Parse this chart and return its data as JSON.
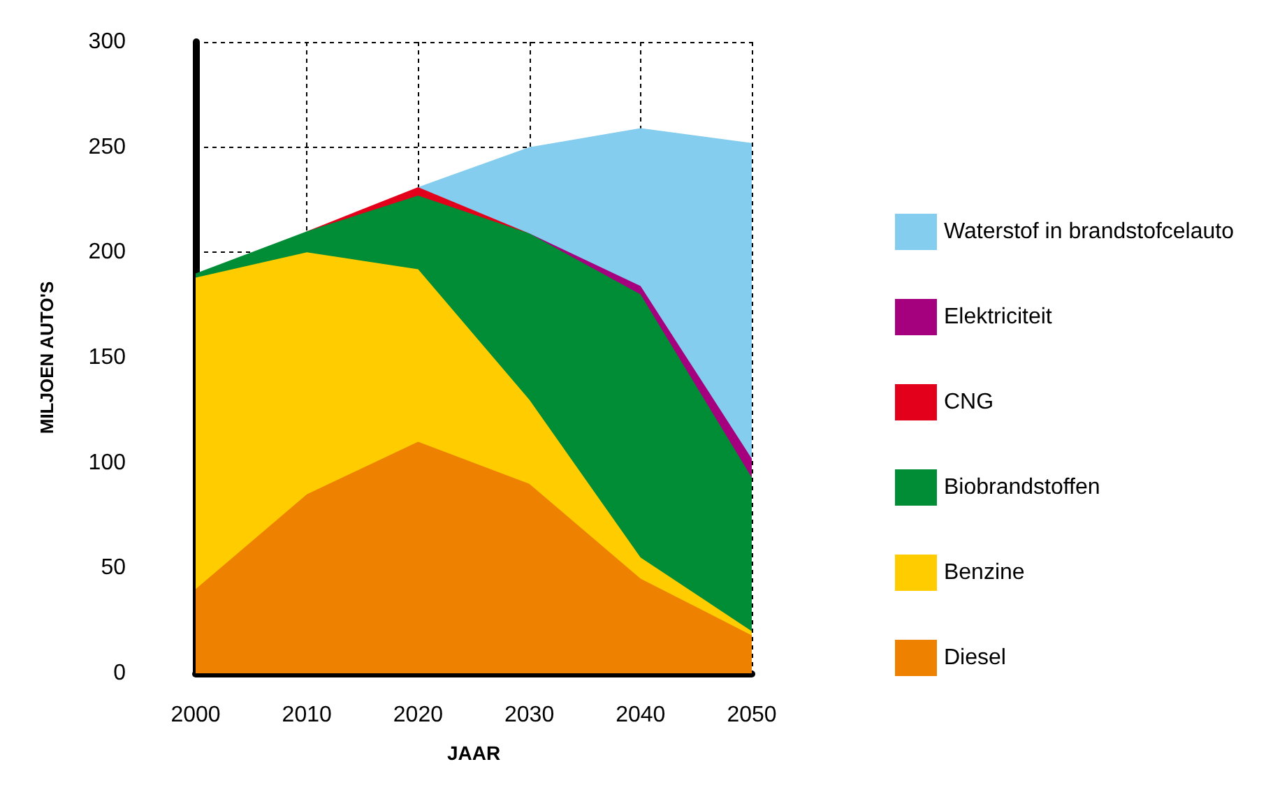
{
  "chart_data": {
    "type": "area",
    "stacked": true,
    "xlabel": "JAAR",
    "ylabel": "MILJOEN AUTO'S",
    "x": [
      2000,
      2010,
      2020,
      2030,
      2040,
      2050
    ],
    "series": [
      {
        "name": "Diesel",
        "color": "#ee8100",
        "values": [
          40,
          85,
          110,
          90,
          45,
          18
        ]
      },
      {
        "name": "Benzine",
        "color": "#ffcc00",
        "values": [
          148,
          115,
          82,
          40,
          10,
          2
        ]
      },
      {
        "name": "Biobrandstoffen",
        "color": "#008d36",
        "values": [
          2,
          10,
          35,
          79,
          125,
          73
        ]
      },
      {
        "name": "CNG",
        "color": "#e2001a",
        "values": [
          null,
          0,
          4,
          0,
          null,
          null
        ]
      },
      {
        "name": "Elektriciteit",
        "color": "#a5007d",
        "values": [
          null,
          null,
          null,
          0,
          4,
          9
        ]
      },
      {
        "name": "Waterstof in brandstofcelauto",
        "color": "#84cdee",
        "values": [
          null,
          null,
          0,
          41,
          75,
          150
        ]
      }
    ],
    "xlim": [
      2000,
      2050
    ],
    "xticks": [
      2000,
      2010,
      2020,
      2030,
      2040,
      2050
    ],
    "ylim": [
      0,
      300
    ],
    "yticks": [
      0,
      50,
      100,
      150,
      200,
      250,
      300
    ],
    "grid": true,
    "legend": "right"
  }
}
